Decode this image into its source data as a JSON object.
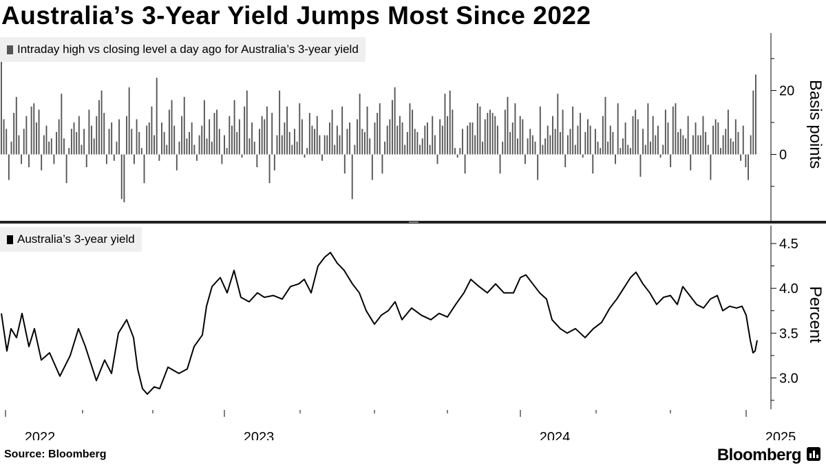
{
  "title": "Australia’s 3-Year Yield Jumps Most Since 2022",
  "source": "Source: Bloomberg",
  "brand": "Bloomberg",
  "colors": {
    "bars": "#555555",
    "line": "#000000",
    "legend_bg": "#efefef",
    "axis": "#000000"
  },
  "x_axis": {
    "tick_labels": [
      "2022",
      "2023",
      "2024",
      "2025"
    ]
  },
  "chart_data": [
    {
      "type": "bar",
      "legend": "Intraday high vs closing level a day ago for Australia’s 3-year yield",
      "ylabel": "Basis points",
      "yticks": [
        0,
        20
      ],
      "ylim": [
        -21,
        38
      ],
      "x_range": [
        "2021-11",
        "2025-02"
      ],
      "series_summary": "daily bars, mostly between -10 and +15 bp; final bar ~25 bp, the largest since 2022",
      "values": [
        30,
        11,
        8,
        -8,
        4,
        13,
        18,
        6,
        -3,
        8,
        12,
        -4,
        15,
        16,
        10,
        14,
        -5,
        6,
        9,
        4,
        5,
        -3,
        7,
        11,
        19,
        5,
        -9,
        2,
        8,
        10,
        7,
        12,
        3,
        8,
        -4,
        14,
        9,
        5,
        12,
        17,
        20,
        13,
        -3,
        8,
        10,
        -2,
        4,
        11,
        -14,
        -15,
        12,
        21,
        8,
        -3,
        11,
        7,
        2,
        -9,
        9,
        10,
        15,
        6,
        24,
        -2,
        10,
        7,
        3,
        14,
        17,
        9,
        -5,
        4,
        12,
        18,
        5,
        7,
        10,
        3,
        -2,
        6,
        9,
        17,
        5,
        11,
        4,
        13,
        14,
        8,
        -3,
        6,
        2,
        12,
        9,
        17,
        7,
        11,
        -1,
        15,
        20,
        5,
        10,
        4,
        -4,
        8,
        12,
        11,
        15,
        -9,
        13,
        -5,
        6,
        20,
        6,
        10,
        15,
        7,
        3,
        8,
        4,
        16,
        11,
        -1,
        2,
        13,
        9,
        8,
        12,
        6,
        -2,
        6,
        6,
        10,
        14,
        3,
        9,
        6,
        15,
        -6,
        8,
        10,
        -14,
        3,
        11,
        19,
        8,
        7,
        15,
        5,
        -8,
        10,
        13,
        16,
        -6,
        4,
        9,
        11,
        17,
        21,
        9,
        12,
        10,
        3,
        7,
        16,
        14,
        8,
        7,
        3,
        5,
        9,
        10,
        3,
        12,
        6,
        -3,
        11,
        9,
        19,
        12,
        20,
        14,
        2,
        -1,
        2,
        8,
        -6,
        9,
        10,
        10,
        6,
        16,
        15,
        4,
        11,
        13,
        14,
        13,
        12,
        9,
        -6,
        4,
        14,
        18,
        7,
        10,
        16,
        5,
        12,
        11,
        -3,
        5,
        8,
        6,
        4,
        -8,
        15,
        3,
        5,
        9,
        6,
        12,
        8,
        19,
        7,
        14,
        -4,
        6,
        8,
        15,
        3,
        9,
        13,
        -1,
        7,
        11,
        9,
        -6,
        8,
        4,
        2,
        12,
        18,
        4,
        9,
        7,
        -3,
        16,
        2,
        5,
        10,
        3,
        2,
        12,
        14,
        11,
        -7,
        8,
        3,
        16,
        4,
        12,
        6,
        9,
        -1,
        3,
        14,
        10,
        -4,
        15,
        16,
        7,
        8,
        6,
        5,
        12,
        -5,
        6,
        10,
        6,
        6,
        12,
        7,
        3,
        -8,
        9,
        11,
        10,
        2,
        6,
        8,
        14,
        5,
        4,
        11,
        7,
        -2,
        9,
        -4,
        -8,
        6,
        20,
        25
      ]
    },
    {
      "type": "line",
      "legend": "Australia’s 3-year yield",
      "ylabel": "Percent",
      "yticks": [
        3.0,
        3.5,
        4.0,
        4.5
      ],
      "ylim": [
        2.65,
        4.7
      ],
      "x_range": [
        "2021-11",
        "2025-02"
      ],
      "points": [
        {
          "t": 0,
          "v": 3.72
        },
        {
          "t": 8,
          "v": 3.3
        },
        {
          "t": 14,
          "v": 3.55
        },
        {
          "t": 22,
          "v": 3.45
        },
        {
          "t": 30,
          "v": 3.72
        },
        {
          "t": 40,
          "v": 3.35
        },
        {
          "t": 48,
          "v": 3.55
        },
        {
          "t": 58,
          "v": 3.2
        },
        {
          "t": 70,
          "v": 3.28
        },
        {
          "t": 85,
          "v": 3.02
        },
        {
          "t": 100,
          "v": 3.25
        },
        {
          "t": 112,
          "v": 3.55
        },
        {
          "t": 122,
          "v": 3.35
        },
        {
          "t": 138,
          "v": 2.97
        },
        {
          "t": 150,
          "v": 3.2
        },
        {
          "t": 160,
          "v": 3.05
        },
        {
          "t": 170,
          "v": 3.5
        },
        {
          "t": 182,
          "v": 3.65
        },
        {
          "t": 192,
          "v": 3.45
        },
        {
          "t": 198,
          "v": 3.1
        },
        {
          "t": 205,
          "v": 2.88
        },
        {
          "t": 212,
          "v": 2.82
        },
        {
          "t": 222,
          "v": 2.9
        },
        {
          "t": 230,
          "v": 2.88
        },
        {
          "t": 242,
          "v": 3.12
        },
        {
          "t": 258,
          "v": 3.05
        },
        {
          "t": 270,
          "v": 3.1
        },
        {
          "t": 280,
          "v": 3.35
        },
        {
          "t": 292,
          "v": 3.48
        },
        {
          "t": 298,
          "v": 3.8
        },
        {
          "t": 306,
          "v": 4.02
        },
        {
          "t": 318,
          "v": 4.12
        },
        {
          "t": 328,
          "v": 3.95
        },
        {
          "t": 338,
          "v": 4.2
        },
        {
          "t": 348,
          "v": 3.9
        },
        {
          "t": 360,
          "v": 3.85
        },
        {
          "t": 372,
          "v": 3.95
        },
        {
          "t": 382,
          "v": 3.9
        },
        {
          "t": 395,
          "v": 3.92
        },
        {
          "t": 408,
          "v": 3.88
        },
        {
          "t": 420,
          "v": 4.02
        },
        {
          "t": 432,
          "v": 4.05
        },
        {
          "t": 440,
          "v": 4.1
        },
        {
          "t": 450,
          "v": 3.95
        },
        {
          "t": 460,
          "v": 4.25
        },
        {
          "t": 470,
          "v": 4.35
        },
        {
          "t": 478,
          "v": 4.4
        },
        {
          "t": 488,
          "v": 4.28
        },
        {
          "t": 498,
          "v": 4.2
        },
        {
          "t": 510,
          "v": 4.05
        },
        {
          "t": 520,
          "v": 3.95
        },
        {
          "t": 530,
          "v": 3.75
        },
        {
          "t": 542,
          "v": 3.6
        },
        {
          "t": 552,
          "v": 3.7
        },
        {
          "t": 562,
          "v": 3.75
        },
        {
          "t": 572,
          "v": 3.85
        },
        {
          "t": 582,
          "v": 3.65
        },
        {
          "t": 596,
          "v": 3.78
        },
        {
          "t": 610,
          "v": 3.7
        },
        {
          "t": 624,
          "v": 3.65
        },
        {
          "t": 636,
          "v": 3.72
        },
        {
          "t": 648,
          "v": 3.68
        },
        {
          "t": 660,
          "v": 3.82
        },
        {
          "t": 672,
          "v": 3.95
        },
        {
          "t": 682,
          "v": 4.1
        },
        {
          "t": 694,
          "v": 4.02
        },
        {
          "t": 706,
          "v": 3.95
        },
        {
          "t": 718,
          "v": 4.05
        },
        {
          "t": 730,
          "v": 3.95
        },
        {
          "t": 744,
          "v": 3.95
        },
        {
          "t": 754,
          "v": 4.12
        },
        {
          "t": 762,
          "v": 4.15
        },
        {
          "t": 772,
          "v": 4.05
        },
        {
          "t": 782,
          "v": 3.95
        },
        {
          "t": 792,
          "v": 3.88
        },
        {
          "t": 800,
          "v": 3.65
        },
        {
          "t": 812,
          "v": 3.55
        },
        {
          "t": 822,
          "v": 3.5
        },
        {
          "t": 834,
          "v": 3.55
        },
        {
          "t": 848,
          "v": 3.45
        },
        {
          "t": 860,
          "v": 3.55
        },
        {
          "t": 872,
          "v": 3.62
        },
        {
          "t": 884,
          "v": 3.78
        },
        {
          "t": 894,
          "v": 3.88
        },
        {
          "t": 904,
          "v": 4.0
        },
        {
          "t": 914,
          "v": 4.12
        },
        {
          "t": 922,
          "v": 4.18
        },
        {
          "t": 932,
          "v": 4.05
        },
        {
          "t": 942,
          "v": 3.95
        },
        {
          "t": 952,
          "v": 3.82
        },
        {
          "t": 962,
          "v": 3.9
        },
        {
          "t": 972,
          "v": 3.92
        },
        {
          "t": 982,
          "v": 3.82
        },
        {
          "t": 990,
          "v": 4.02
        },
        {
          "t": 1000,
          "v": 3.92
        },
        {
          "t": 1010,
          "v": 3.82
        },
        {
          "t": 1020,
          "v": 3.78
        },
        {
          "t": 1030,
          "v": 3.88
        },
        {
          "t": 1040,
          "v": 3.92
        },
        {
          "t": 1048,
          "v": 3.75
        },
        {
          "t": 1058,
          "v": 3.8
        },
        {
          "t": 1068,
          "v": 3.78
        },
        {
          "t": 1076,
          "v": 3.8
        },
        {
          "t": 1082,
          "v": 3.7
        },
        {
          "t": 1088,
          "v": 3.42
        },
        {
          "t": 1092,
          "v": 3.28
        },
        {
          "t": 1095,
          "v": 3.3
        },
        {
          "t": 1098,
          "v": 3.42
        }
      ]
    }
  ]
}
